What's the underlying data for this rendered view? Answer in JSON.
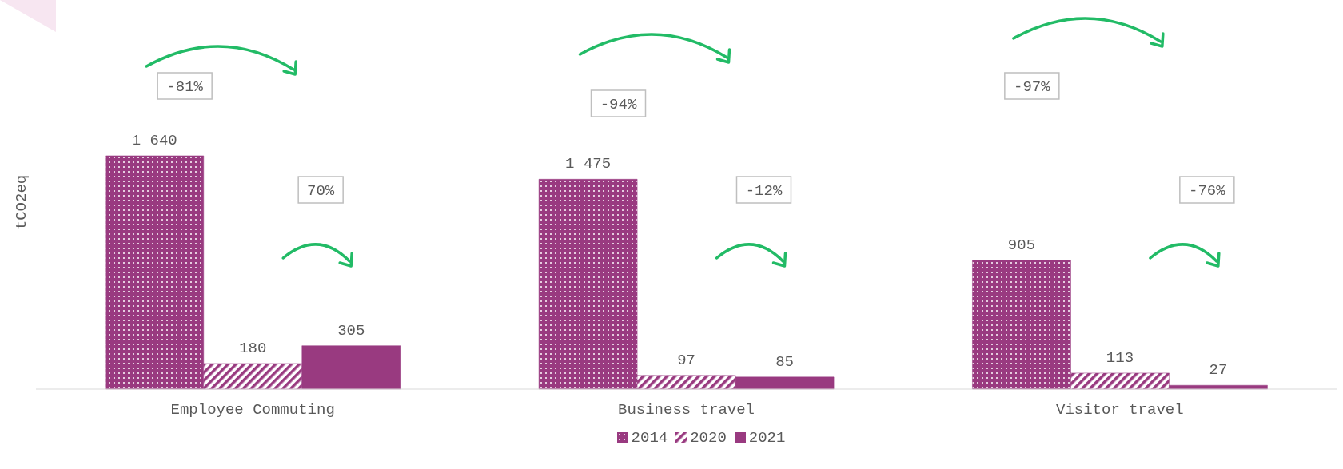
{
  "chart_data": {
    "type": "bar",
    "ylabel": "tCO2eq",
    "categories": [
      "Employee Commuting",
      "Business travel",
      "Visitor travel"
    ],
    "series": [
      {
        "name": "2014",
        "color": "#993a80",
        "values": [
          1640,
          1475,
          905
        ],
        "value_labels": [
          "1 640",
          "1 475",
          "905"
        ]
      },
      {
        "name": "2020",
        "color": "#993a80",
        "values": [
          180,
          97,
          113
        ],
        "value_labels": [
          "180",
          "97",
          "113"
        ]
      },
      {
        "name": "2021",
        "color": "#993a80",
        "values": [
          305,
          85,
          27
        ],
        "value_labels": [
          "305",
          "85",
          "27"
        ]
      }
    ],
    "annotations": [
      "-81%",
      "70%",
      "-94%",
      "-12%",
      "-97%",
      "-76%"
    ],
    "legend": "bottom"
  }
}
